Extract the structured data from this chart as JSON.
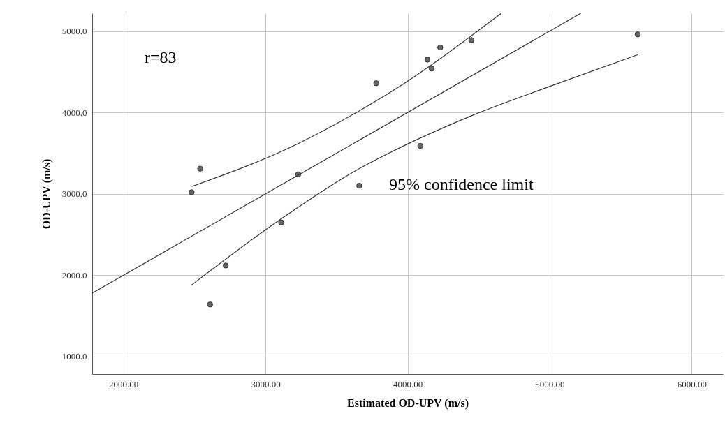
{
  "chart_data": {
    "type": "scatter",
    "xlabel": "Estimated OD-UPV (m/s)",
    "ylabel": "OD-UPV (m/s)",
    "xlim": [
      1780,
      6220
    ],
    "ylim": [
      785,
      5220
    ],
    "xticks": [
      {
        "value": 2000,
        "label": "2000.00"
      },
      {
        "value": 3000,
        "label": "3000.00"
      },
      {
        "value": 4000,
        "label": "4000.00"
      },
      {
        "value": 5000,
        "label": "5000.00"
      },
      {
        "value": 6000,
        "label": "6000.00"
      }
    ],
    "yticks": [
      {
        "value": 1000,
        "label": "1000.0"
      },
      {
        "value": 2000,
        "label": "2000.0"
      },
      {
        "value": 3000,
        "label": "3000.0"
      },
      {
        "value": 4000,
        "label": "4000.0"
      },
      {
        "value": 5000,
        "label": "5000.0"
      }
    ],
    "grid": true,
    "series": [
      {
        "color": "#666666",
        "marker": "circle",
        "x": [
          2480,
          2540,
          2610,
          2720,
          3110,
          3230,
          3660,
          3780,
          4090,
          4140,
          4170,
          4230,
          4450,
          5620
        ],
        "values": [
          3020,
          3310,
          1640,
          2120,
          2650,
          3240,
          3100,
          4360,
          3590,
          4650,
          4540,
          4800,
          4890,
          4960
        ]
      },
      {
        "type": "line",
        "color": "#333333",
        "x": [
          1780,
          5220
        ],
        "values": [
          1780,
          5220
        ]
      },
      {
        "type": "line",
        "color": "#333333",
        "x": [
          2480,
          3220,
          3640,
          3880,
          4660
        ],
        "values": [
          3090,
          3610,
          4000,
          4250,
          5220
        ]
      },
      {
        "type": "line",
        "color": "#333333",
        "x": [
          2480,
          3100,
          3640,
          3880,
          4450,
          5000,
          5620
        ],
        "values": [
          1880,
          2680,
          3290,
          3510,
          3960,
          4320,
          4710
        ]
      }
    ],
    "annotations": [
      "r=83",
      "95% confidence limit"
    ]
  }
}
